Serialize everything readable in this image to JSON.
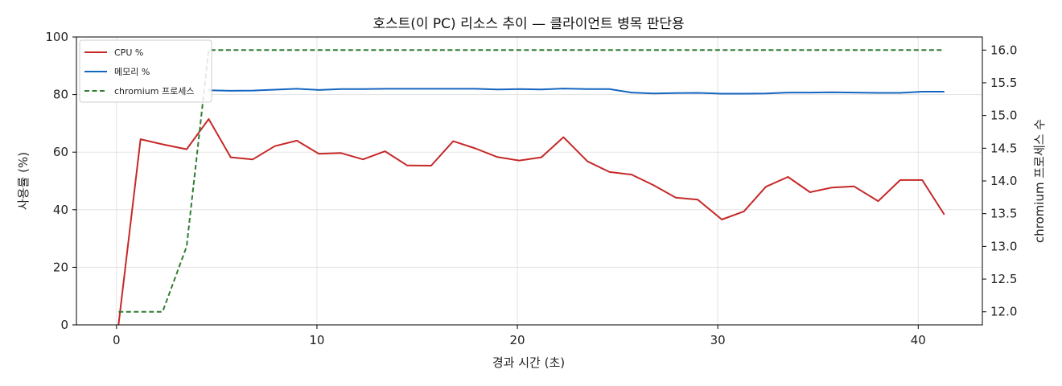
{
  "chart_data": {
    "type": "line",
    "title": "호스트(이 PC) 리소스 추이 — 클라이언트 병목 판단용",
    "xlabel": "경과 시간 (초)",
    "ylabel": "사용률 (%)",
    "y2label": "chromium 프로세스 수",
    "xlim": [
      -2,
      43.2
    ],
    "ylim": [
      0,
      100
    ],
    "y2lim": [
      11.8,
      16.2
    ],
    "xticks": [
      0,
      10,
      20,
      30,
      40
    ],
    "yticks": [
      0,
      20,
      40,
      60,
      80,
      100
    ],
    "y2ticks": [
      12.0,
      12.5,
      13.0,
      13.5,
      14.0,
      14.5,
      15.0,
      15.5,
      16.0
    ],
    "grid": true,
    "legend_position": "top-left",
    "x": [
      0.1,
      1.2,
      2.3,
      3.5,
      4.6,
      5.7,
      6.8,
      7.9,
      9.0,
      10.1,
      11.2,
      12.3,
      13.4,
      14.5,
      15.7,
      16.8,
      17.9,
      19.0,
      20.1,
      21.2,
      22.3,
      23.5,
      24.6,
      25.7,
      26.8,
      27.9,
      29.0,
      30.2,
      31.3,
      32.4,
      33.5,
      34.6,
      35.7,
      36.8,
      38.0,
      39.1,
      40.2,
      41.3
    ],
    "series": [
      {
        "name": "CPU %",
        "axis": "left",
        "color": "#c62828",
        "dash": "solid",
        "values": [
          0,
          64.5,
          62.7,
          61.0,
          71.5,
          58.2,
          57.5,
          62.1,
          64.0,
          59.4,
          59.7,
          57.5,
          60.3,
          55.4,
          55.3,
          63.8,
          61.3,
          58.3,
          57.1,
          58.2,
          65.2,
          56.8,
          53.1,
          52.2,
          48.5,
          44.2,
          43.5,
          36.6,
          39.4,
          48.0,
          51.4,
          46.1,
          47.7,
          48.1,
          43.0,
          50.3,
          50.3,
          38.3
        ]
      },
      {
        "name": "메모리 %",
        "axis": "left",
        "color": "#1565c0",
        "dash": "solid",
        "values": [
          null,
          null,
          null,
          null,
          81.5,
          81.3,
          81.4,
          81.7,
          82.0,
          81.6,
          81.9,
          81.9,
          82.0,
          82.0,
          82.0,
          82.0,
          82.0,
          81.8,
          81.9,
          81.8,
          82.1,
          81.9,
          81.9,
          80.7,
          80.4,
          80.5,
          80.6,
          80.3,
          80.3,
          80.4,
          80.7,
          80.7,
          80.8,
          80.7,
          80.6,
          80.6,
          81.0,
          81.0
        ]
      },
      {
        "name": "chromium 프로세스",
        "axis": "right",
        "color": "#2e7d32",
        "dash": "dashed",
        "values": [
          12,
          12,
          12,
          13,
          16,
          16,
          16,
          16,
          16,
          16,
          16,
          16,
          16,
          16,
          16,
          16,
          16,
          16,
          16,
          16,
          16,
          16,
          16,
          16,
          16,
          16,
          16,
          16,
          16,
          16,
          16,
          16,
          16,
          16,
          16,
          16,
          16,
          16
        ]
      }
    ]
  }
}
